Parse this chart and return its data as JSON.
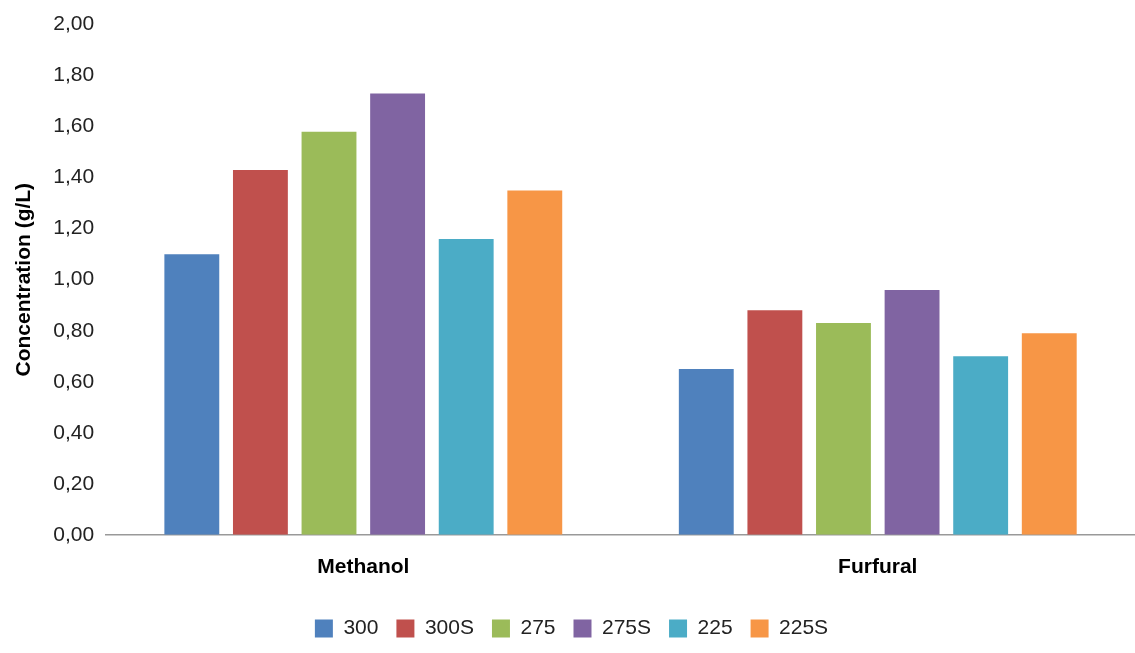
{
  "chart_data": {
    "type": "bar",
    "ylabel": "Concentration (g/L)",
    "categories": [
      "Methanol",
      "Furfural"
    ],
    "series": [
      {
        "name": "300",
        "color": "#4f81bd",
        "values": [
          1.1,
          0.65
        ]
      },
      {
        "name": "300S",
        "color": "#c0504d",
        "values": [
          1.43,
          0.88
        ]
      },
      {
        "name": "275",
        "color": "#9bbb59",
        "values": [
          1.58,
          0.83
        ]
      },
      {
        "name": "275S",
        "color": "#8064a2",
        "values": [
          1.73,
          0.96
        ]
      },
      {
        "name": "225",
        "color": "#4bacc6",
        "values": [
          1.16,
          0.7
        ]
      },
      {
        "name": "225S",
        "color": "#f79646",
        "values": [
          1.35,
          0.79
        ]
      }
    ],
    "ylim": [
      0,
      2
    ],
    "yticks": [
      {
        "value": 0,
        "label": "0,00"
      },
      {
        "value": 0.2,
        "label": "0,20"
      },
      {
        "value": 0.4,
        "label": "0,40"
      },
      {
        "value": 0.6,
        "label": "0,60"
      },
      {
        "value": 0.8,
        "label": "0,80"
      },
      {
        "value": 1,
        "label": "1,00"
      },
      {
        "value": 1.2,
        "label": "1,20"
      },
      {
        "value": 1.4,
        "label": "1,40"
      },
      {
        "value": 1.6,
        "label": "1,60"
      },
      {
        "value": 1.8,
        "label": "1,80"
      },
      {
        "value": 2,
        "label": "2,00"
      }
    ],
    "grid": false,
    "legend": "bottom"
  }
}
